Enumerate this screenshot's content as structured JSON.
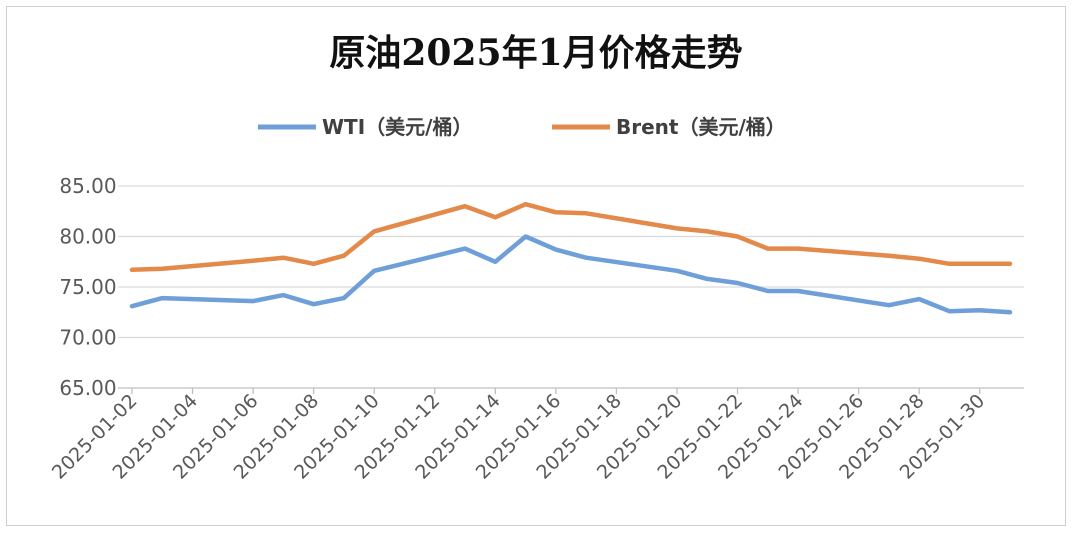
{
  "chart_data": {
    "type": "line",
    "title": "原油2025年1月价格走势",
    "xlabel": "",
    "ylabel": "",
    "ylim": [
      65,
      85
    ],
    "yticks": [
      "85.00",
      "80.00",
      "75.00",
      "70.00",
      "65.00"
    ],
    "xticks": [
      "2025-01-02",
      "2025-01-04",
      "2025-01-06",
      "2025-01-08",
      "2025-01-10",
      "2025-01-12",
      "2025-01-14",
      "2025-01-16",
      "2025-01-18",
      "2025-01-20",
      "2025-01-22",
      "2025-01-24",
      "2025-01-26",
      "2025-01-28",
      "2025-01-30"
    ],
    "grid": true,
    "legend": "top",
    "x": [
      "2025-01-02",
      "2025-01-03",
      "2025-01-06",
      "2025-01-07",
      "2025-01-08",
      "2025-01-09",
      "2025-01-10",
      "2025-01-13",
      "2025-01-14",
      "2025-01-15",
      "2025-01-16",
      "2025-01-17",
      "2025-01-20",
      "2025-01-21",
      "2025-01-22",
      "2025-01-23",
      "2025-01-24",
      "2025-01-27",
      "2025-01-28",
      "2025-01-29",
      "2025-01-30",
      "2025-01-31"
    ],
    "series": [
      {
        "name": "WTI（美元/桶）",
        "color": "#6f9fd8",
        "values": [
          73.1,
          73.9,
          73.6,
          74.2,
          73.3,
          73.9,
          76.6,
          78.8,
          77.5,
          80.0,
          78.7,
          77.9,
          76.6,
          75.8,
          75.4,
          74.6,
          74.6,
          73.2,
          73.8,
          72.6,
          72.7,
          72.5
        ]
      },
      {
        "name": "Brent（美元/桶）",
        "color": "#e38a4a",
        "values": [
          76.7,
          76.8,
          77.6,
          77.9,
          77.3,
          78.1,
          80.5,
          83.0,
          81.9,
          83.2,
          82.4,
          82.3,
          80.8,
          80.5,
          80.0,
          78.8,
          78.8,
          78.1,
          77.8,
          77.3,
          77.3,
          77.3
        ]
      }
    ]
  }
}
